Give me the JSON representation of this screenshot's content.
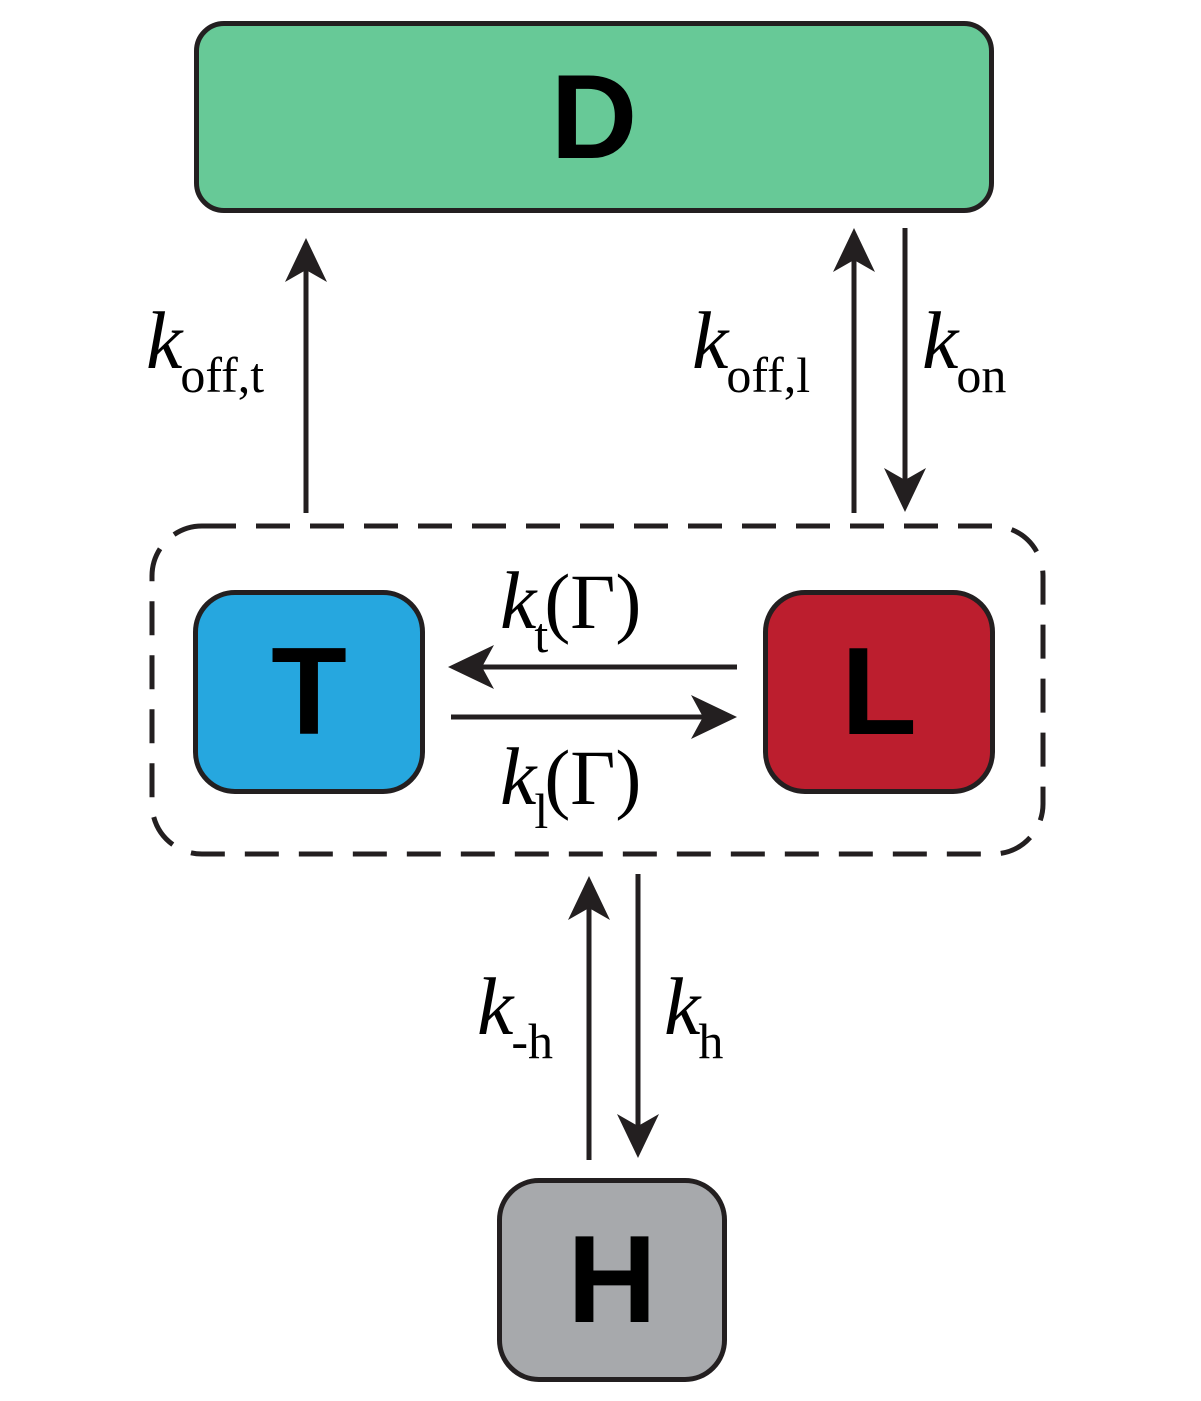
{
  "colors": {
    "D": "#67c997",
    "T": "#26a7df",
    "L": "#bc1e2e",
    "H": "#a7a9ac",
    "stroke": "#231f20"
  },
  "states": {
    "D": "D",
    "T": "T",
    "L": "L",
    "H": "H"
  },
  "rates": {
    "koff_t": {
      "k": "k",
      "sub": "off,t"
    },
    "koff_l": {
      "k": "k",
      "sub": "off,l"
    },
    "kon": {
      "k": "k",
      "sub": "on"
    },
    "kt": {
      "k": "k",
      "sub": "t",
      "arg": "(Γ)"
    },
    "kl": {
      "k": "k",
      "sub": "l",
      "arg": "(Γ)"
    },
    "kmh": {
      "k": "k",
      "sub": "-h"
    },
    "kh": {
      "k": "k",
      "sub": "h"
    }
  }
}
